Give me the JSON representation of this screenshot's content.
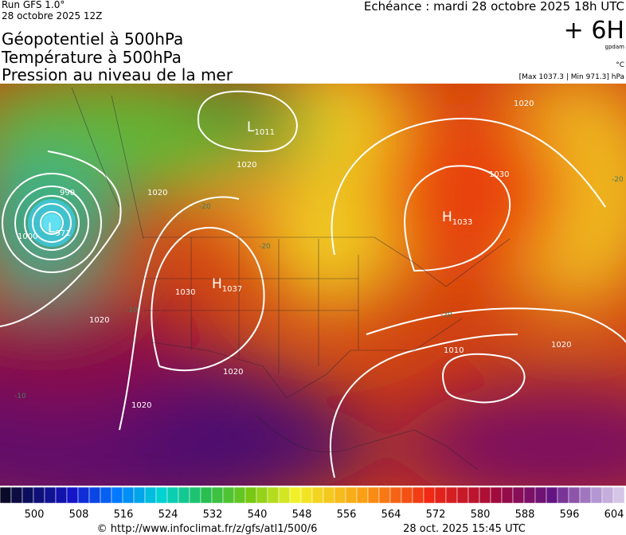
{
  "header": {
    "run": "Run GFS 1.0°",
    "run_date": "28 octobre 2025 12Z",
    "titles": [
      "Géopotentiel à 500hPa",
      "Température à 500hPa",
      "Pression au niveau de la mer"
    ],
    "echeance": "Echéance : mardi 28 octobre 2025 18h UTC",
    "offset": "+ 6H",
    "unit_geo": "gpdam",
    "unit_temp": "°C",
    "range": "[Max 1037.3 | Min 971.3] hPa"
  },
  "map": {
    "centers": [
      {
        "type": "L",
        "value": "1011"
      },
      {
        "type": "H",
        "value": "1033"
      },
      {
        "type": "L",
        "value": "971"
      },
      {
        "type": "H",
        "value": "1037"
      }
    ],
    "isobar_labels": [
      "1020",
      "1020",
      "990",
      "1000",
      "1030",
      "1020",
      "1030",
      "1020",
      "1010",
      "1020",
      "1020",
      "1020"
    ],
    "temp_labels": [
      "-20",
      "-20",
      "-20",
      "-20",
      "-10",
      "-10"
    ]
  },
  "legend": {
    "labels": [
      500,
      508,
      516,
      524,
      532,
      540,
      548,
      556,
      564,
      572,
      580,
      588,
      596,
      604
    ]
  },
  "footer": {
    "url": "© http://www.infoclimat.fr/z/gfs/atl1/500/6",
    "time": "28 oct. 2025 15:45 UTC"
  }
}
